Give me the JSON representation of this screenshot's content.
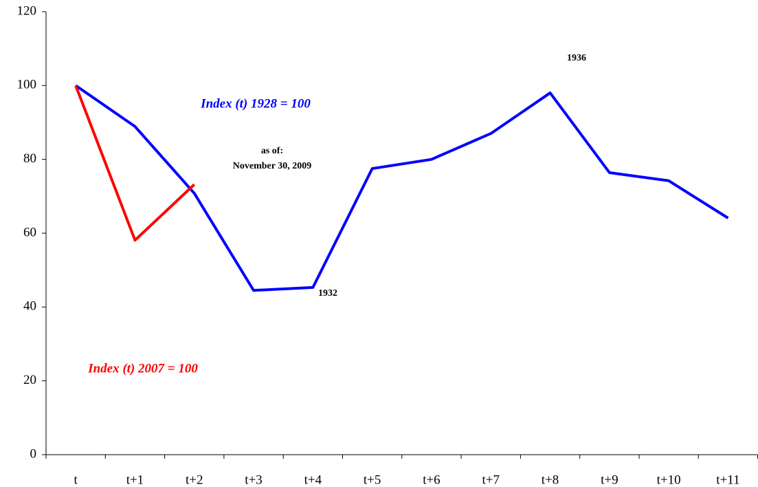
{
  "chart_data": {
    "type": "line",
    "categories": [
      "t",
      "t+1",
      "t+2",
      "t+3",
      "t+4",
      "t+5",
      "t+6",
      "t+7",
      "t+8",
      "t+9",
      "t+10",
      "t+11"
    ],
    "series": [
      {
        "name": "Index (t) 1928 = 100",
        "color": "#0000ff",
        "values": [
          100,
          88.9,
          70.8,
          44.5,
          45.3,
          77.5,
          80,
          87,
          98,
          76.4,
          74.2,
          64.1
        ]
      },
      {
        "name": "Index (t) 2007 = 100",
        "color": "#ff0000",
        "values": [
          100,
          58.1,
          73.2,
          null,
          null,
          null,
          null,
          null,
          null,
          null,
          null,
          null
        ]
      }
    ],
    "annotations": [
      "as of:",
      "November 30, 2009",
      "1932",
      "1936"
    ],
    "ylim": [
      0,
      120
    ],
    "yticks": [
      0,
      20,
      40,
      60,
      80,
      100,
      120
    ],
    "grid": false
  }
}
